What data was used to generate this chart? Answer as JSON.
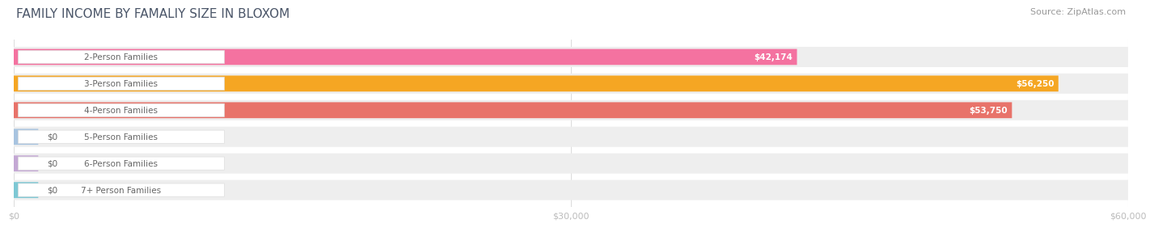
{
  "title": "FAMILY INCOME BY FAMALIY SIZE IN BLOXOM",
  "source": "Source: ZipAtlas.com",
  "categories": [
    "2-Person Families",
    "3-Person Families",
    "4-Person Families",
    "5-Person Families",
    "6-Person Families",
    "7+ Person Families"
  ],
  "values": [
    42174,
    56250,
    53750,
    0,
    0,
    0
  ],
  "bar_colors": [
    "#F472A0",
    "#F5A623",
    "#E8736A",
    "#A8C4E0",
    "#C4A8D4",
    "#7EC8D4"
  ],
  "bar_bg_color": "#EEEEEE",
  "label_bg_color": "#FFFFFF",
  "label_text_color": "#666666",
  "value_labels": [
    "$42,174",
    "$56,250",
    "$53,750",
    "$0",
    "$0",
    "$0"
  ],
  "xlim": [
    0,
    60000
  ],
  "xticks": [
    0,
    30000,
    60000
  ],
  "xtick_labels": [
    "$0",
    "$30,000",
    "$60,000"
  ],
  "title_fontsize": 11,
  "source_fontsize": 8,
  "bar_label_fontsize": 7.5,
  "tick_fontsize": 8,
  "background_color": "#FFFFFF",
  "title_color": "#4A5568",
  "source_color": "#999999",
  "tick_color": "#BBBBBB"
}
